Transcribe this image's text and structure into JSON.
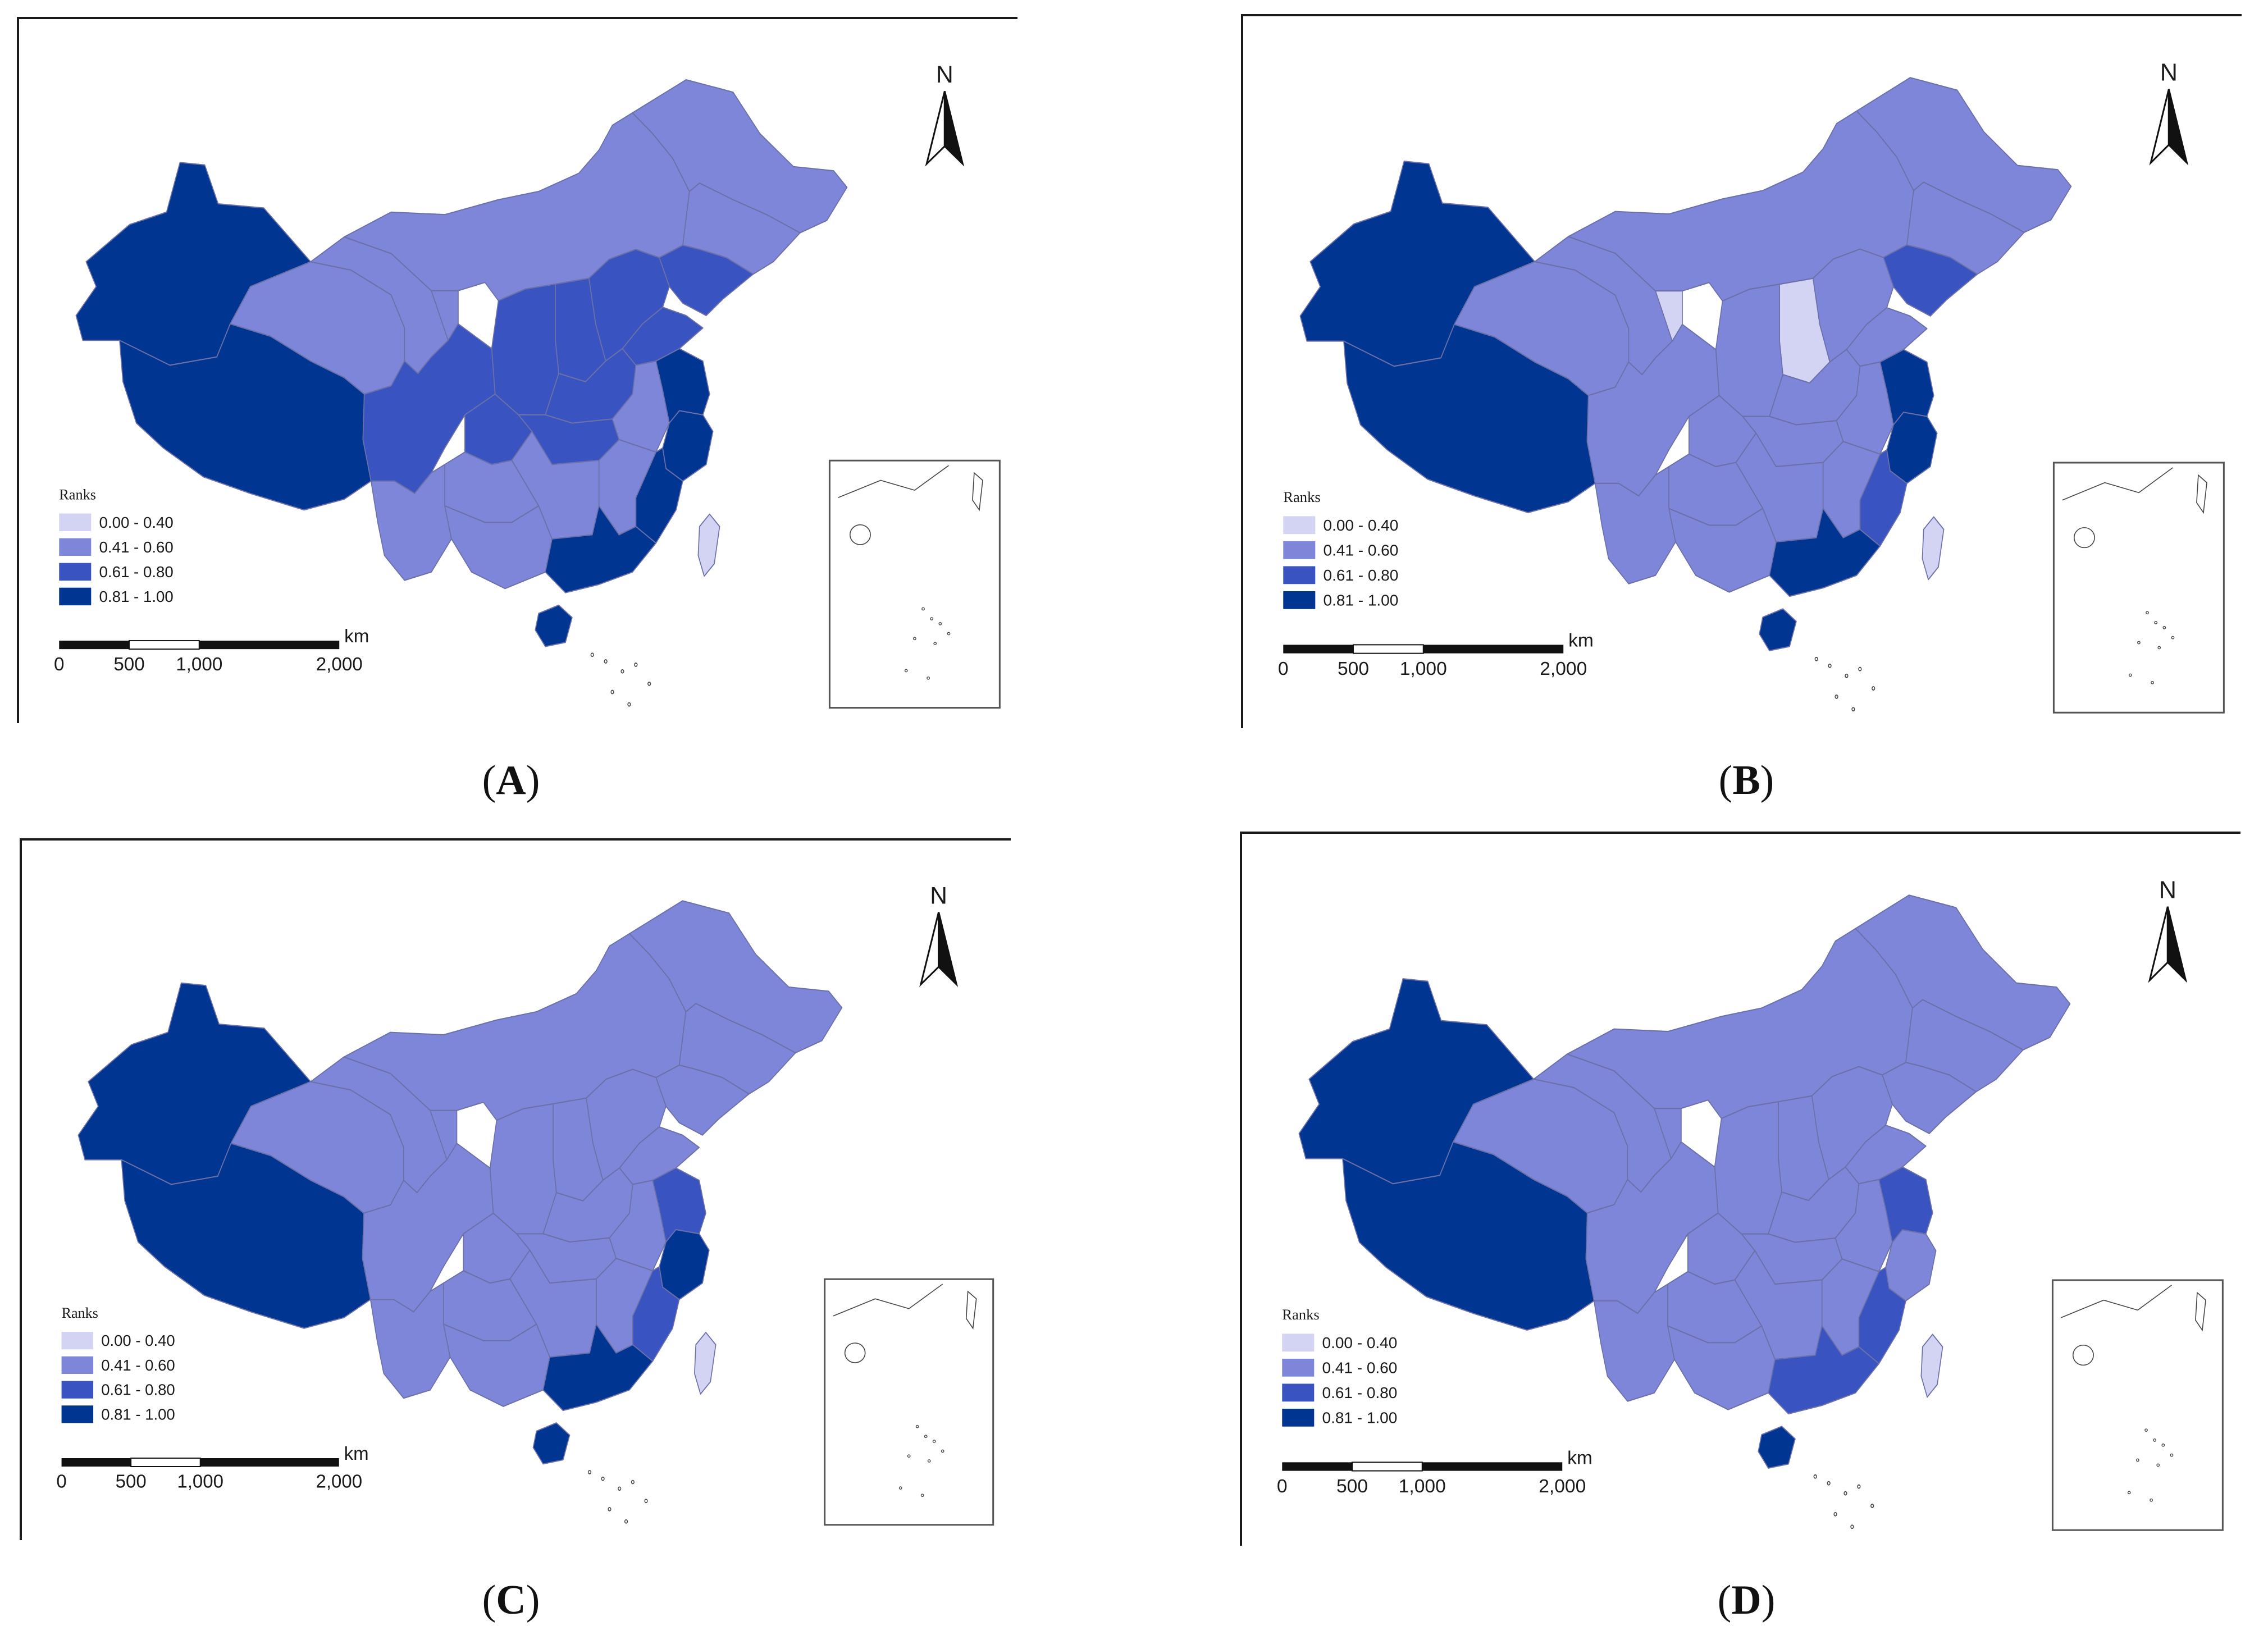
{
  "legend": {
    "title": "Ranks",
    "classes": [
      {
        "label": "0.00 - 0.40",
        "color": "#d3d3f3"
      },
      {
        "label": "0.41 - 0.60",
        "color": "#7d86d8"
      },
      {
        "label": "0.61 - 0.80",
        "color": "#3954c0"
      },
      {
        "label": "0.81 - 1.00",
        "color": "#003591"
      }
    ]
  },
  "scale_bar": {
    "unit": "km",
    "ticks": [
      "0",
      "500",
      "1,000",
      "2,000"
    ]
  },
  "north_label": "N",
  "panels": [
    {
      "id": "A",
      "caption": "A",
      "classes": {
        "xinjiang": 3,
        "tibet": 3,
        "qinghai": 1,
        "gansu": 1,
        "inner_mongolia": 1,
        "ningxia": 1,
        "heilongjiang": 1,
        "jilin": 1,
        "liaoning": 2,
        "beijing": 3,
        "hebei": 2,
        "shanxi": 2,
        "shaanxi": 2,
        "henan": 2,
        "shandong": 2,
        "sichuan": 2,
        "chongqing": 2,
        "hubei": 2,
        "anhui": 1,
        "jiangsu": 3,
        "zhejiang": 3,
        "fujian": 3,
        "jiangxi": 1,
        "hunan": 1,
        "guizhou": 1,
        "yunnan": 1,
        "guangxi": 1,
        "guangdong": 3,
        "hainan": 3,
        "taiwan": 0
      }
    },
    {
      "id": "B",
      "caption": "B",
      "classes": {
        "xinjiang": 3,
        "tibet": 3,
        "qinghai": 1,
        "gansu": 1,
        "inner_mongolia": 1,
        "ningxia": 0,
        "heilongjiang": 1,
        "jilin": 1,
        "liaoning": 2,
        "beijing": 3,
        "hebei": 1,
        "shanxi": 0,
        "shaanxi": 1,
        "henan": 1,
        "shandong": 1,
        "sichuan": 1,
        "chongqing": 1,
        "hubei": 1,
        "anhui": 1,
        "jiangsu": 3,
        "zhejiang": 3,
        "fujian": 2,
        "jiangxi": 1,
        "hunan": 1,
        "guizhou": 1,
        "yunnan": 1,
        "guangxi": 1,
        "guangdong": 3,
        "hainan": 3,
        "taiwan": 0
      }
    },
    {
      "id": "C",
      "caption": "C",
      "classes": {
        "xinjiang": 3,
        "tibet": 3,
        "qinghai": 1,
        "gansu": 1,
        "inner_mongolia": 1,
        "ningxia": 1,
        "heilongjiang": 1,
        "jilin": 1,
        "liaoning": 1,
        "beijing": 3,
        "hebei": 1,
        "shanxi": 1,
        "shaanxi": 1,
        "henan": 1,
        "shandong": 1,
        "sichuan": 1,
        "chongqing": 1,
        "hubei": 1,
        "anhui": 1,
        "jiangsu": 2,
        "zhejiang": 3,
        "fujian": 2,
        "jiangxi": 1,
        "hunan": 1,
        "guizhou": 1,
        "yunnan": 1,
        "guangxi": 1,
        "guangdong": 3,
        "hainan": 3,
        "taiwan": 0
      }
    },
    {
      "id": "D",
      "caption": "D",
      "classes": {
        "xinjiang": 3,
        "tibet": 3,
        "qinghai": 1,
        "gansu": 1,
        "inner_mongolia": 1,
        "ningxia": 1,
        "heilongjiang": 1,
        "jilin": 1,
        "liaoning": 1,
        "beijing": 3,
        "hebei": 1,
        "shanxi": 1,
        "shaanxi": 1,
        "henan": 1,
        "shandong": 1,
        "sichuan": 1,
        "chongqing": 1,
        "hubei": 1,
        "anhui": 1,
        "jiangsu": 2,
        "zhejiang": 1,
        "fujian": 2,
        "jiangxi": 1,
        "hunan": 1,
        "guizhou": 1,
        "yunnan": 1,
        "guangxi": 1,
        "guangdong": 2,
        "hainan": 3,
        "taiwan": 0
      }
    }
  ]
}
